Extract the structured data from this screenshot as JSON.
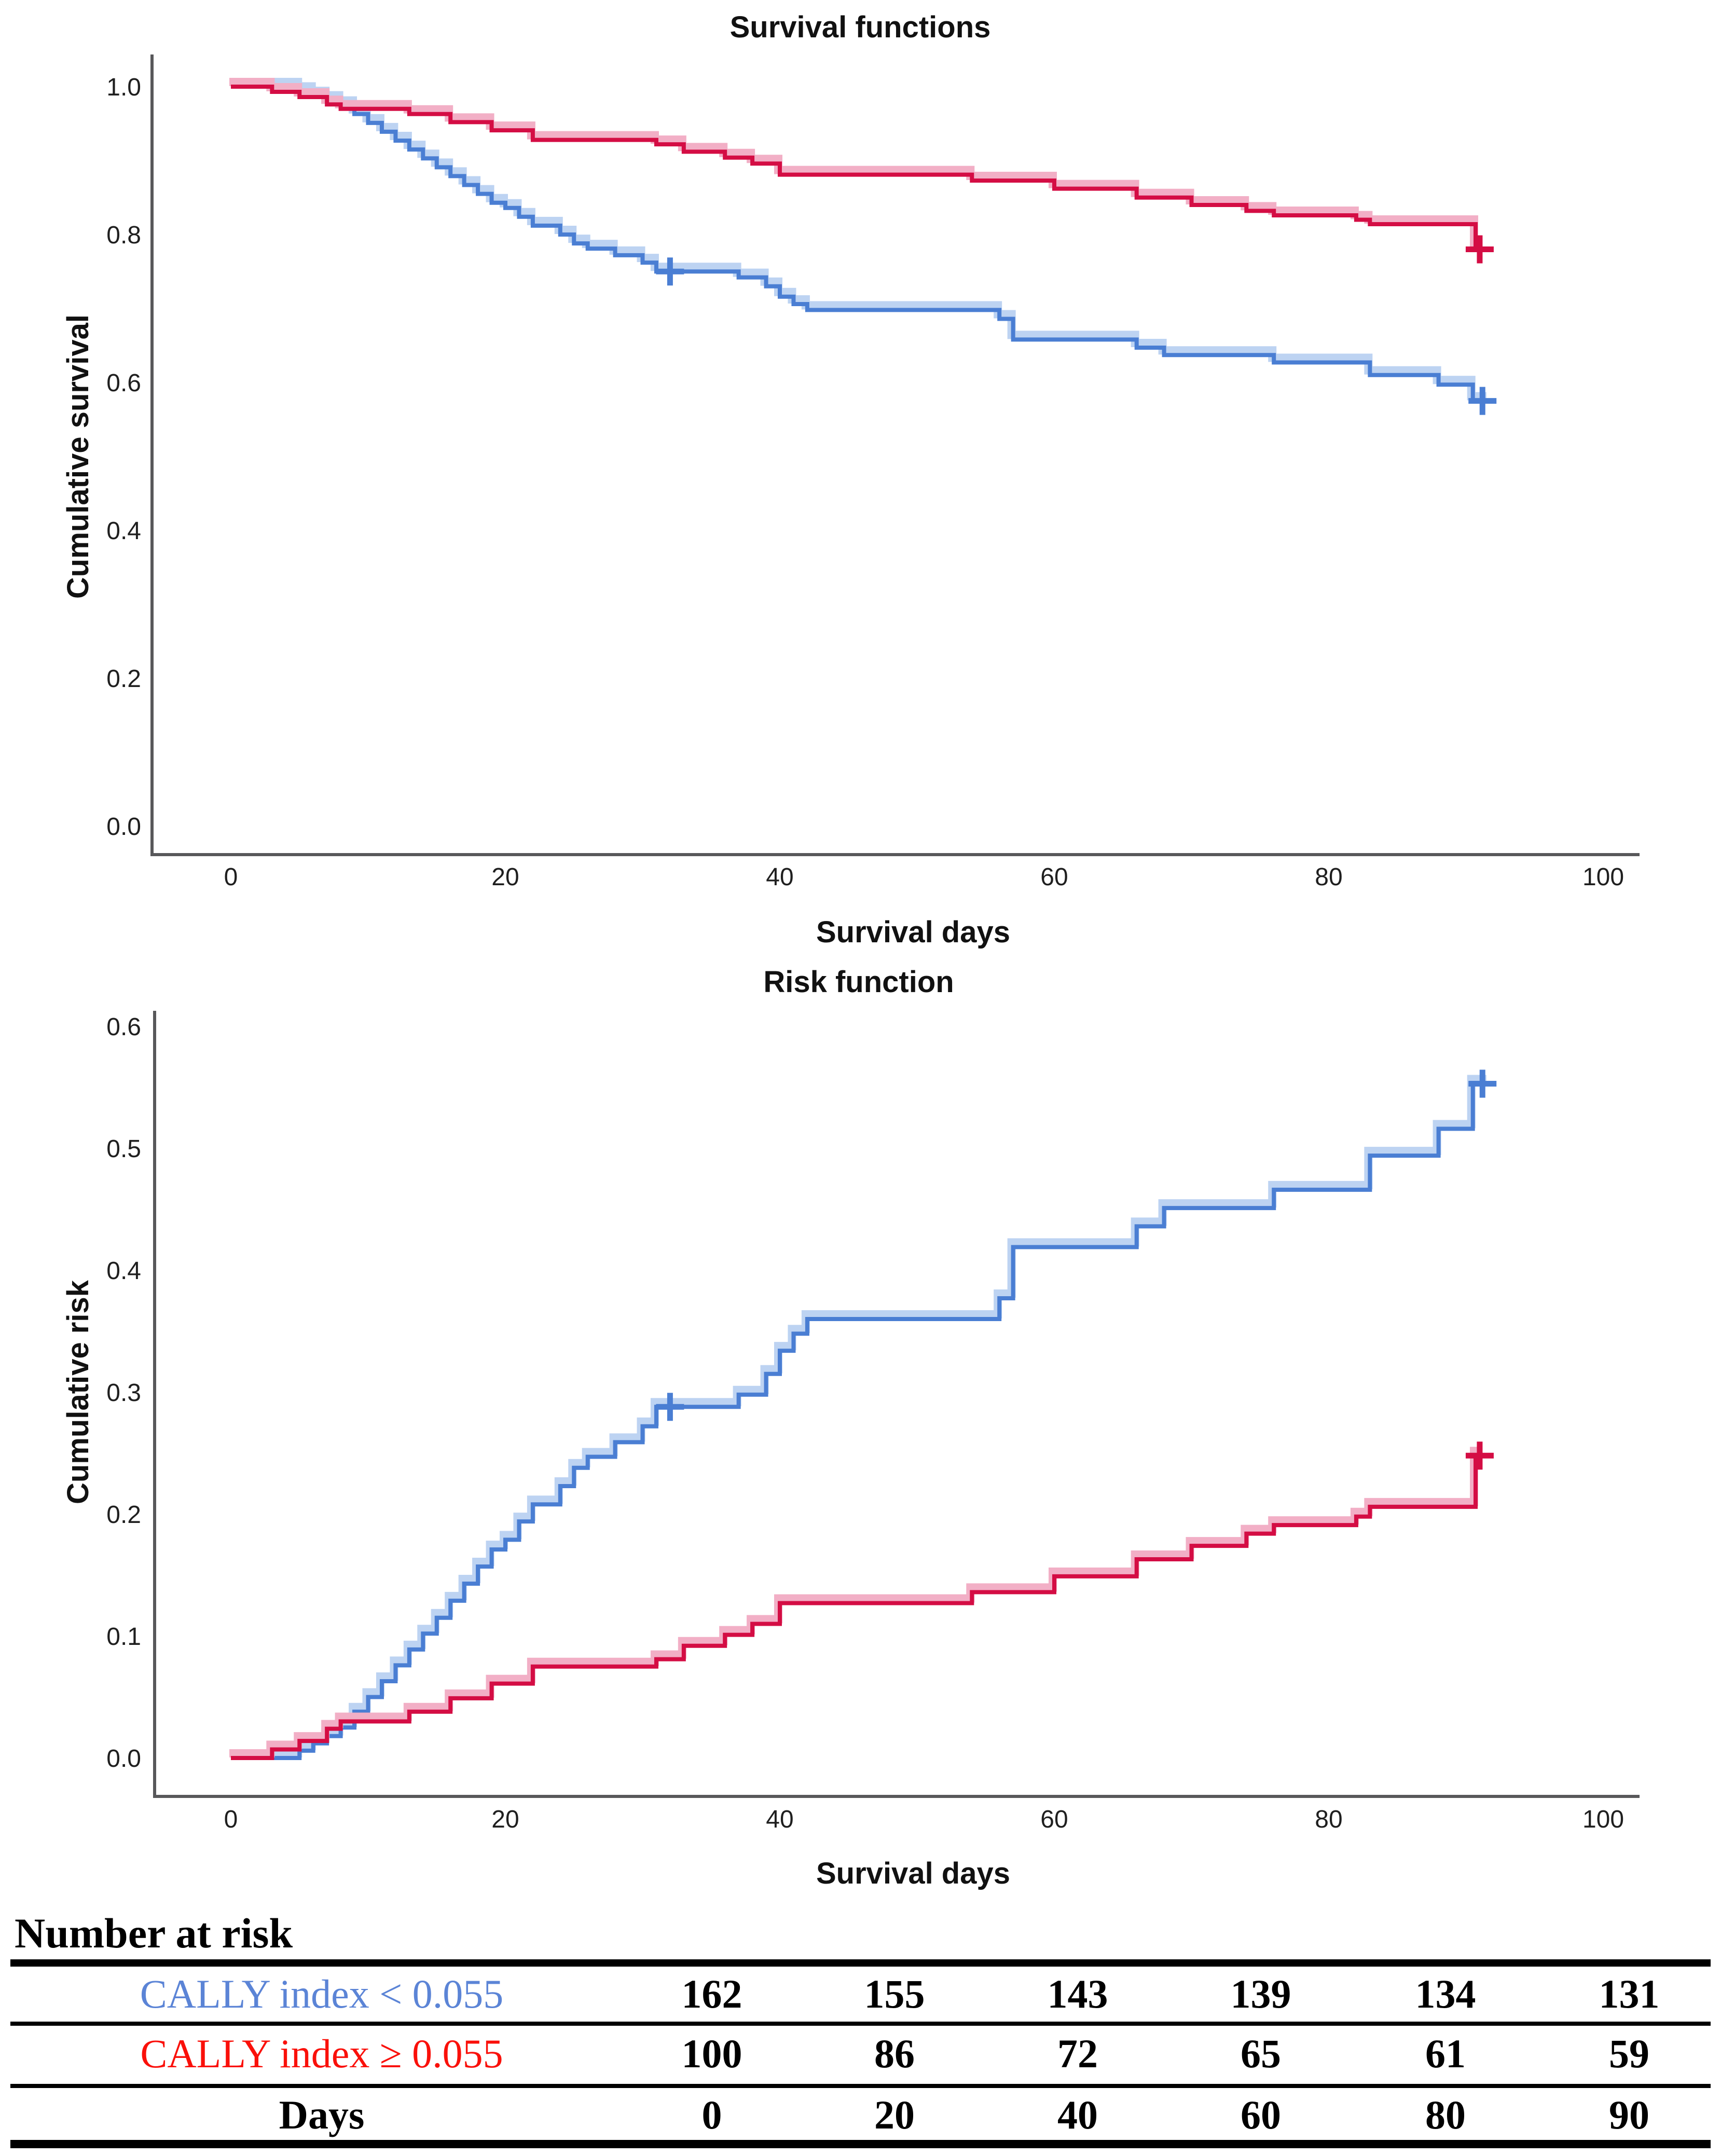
{
  "accent_colors": {
    "curve_blue": "#4a7ed3",
    "curve_blue_halo": "#bdd3f2",
    "curve_red": "#d40d44",
    "curve_red_halo": "#f2afc6",
    "table_label_blue": "#5b84d6",
    "table_label_red": "#fa100a",
    "axis_gray": "#58585a"
  },
  "chart_data": [
    {
      "type": "line",
      "step": true,
      "title": "Survival functions",
      "xlabel": "Survival days",
      "ylabel": "Cumulative survival",
      "xlim": [
        0,
        100
      ],
      "ylim": [
        0.0,
        1.0
      ],
      "x_ticks": [
        0,
        20,
        40,
        60,
        80,
        100
      ],
      "y_ticks": [
        "1.0",
        "0.8",
        "0.6",
        "0.4",
        "0.2",
        "0.0"
      ],
      "grid": false,
      "legend_position": "none",
      "series": [
        {
          "name": "CALLY index < 0.055",
          "color": "#4a7ed3",
          "halo": "#bdd3f2",
          "end_x": 91.6,
          "points": [
            [
              0,
              1.0
            ],
            [
              5,
              0.994
            ],
            [
              6,
              0.988
            ],
            [
              7,
              0.982
            ],
            [
              8,
              0.975
            ],
            [
              9,
              0.963
            ],
            [
              10,
              0.951
            ],
            [
              11,
              0.939
            ],
            [
              12,
              0.927
            ],
            [
              13,
              0.915
            ],
            [
              14,
              0.903
            ],
            [
              15,
              0.891
            ],
            [
              16,
              0.879
            ],
            [
              17,
              0.867
            ],
            [
              18,
              0.855
            ],
            [
              19,
              0.843
            ],
            [
              20,
              0.836
            ],
            [
              21,
              0.824
            ],
            [
              22,
              0.812
            ],
            [
              24,
              0.8
            ],
            [
              25,
              0.788
            ],
            [
              26,
              0.781
            ],
            [
              28,
              0.772
            ],
            [
              30,
              0.762
            ],
            [
              31,
              0.75
            ],
            [
              37,
              0.742
            ],
            [
              39,
              0.73
            ],
            [
              40,
              0.716
            ],
            [
              41,
              0.706
            ],
            [
              42,
              0.698
            ],
            [
              56,
              0.686
            ],
            [
              57,
              0.658
            ],
            [
              66,
              0.647
            ],
            [
              68,
              0.637
            ],
            [
              76,
              0.627
            ],
            [
              83,
              0.61
            ],
            [
              88,
              0.597
            ],
            [
              90.5,
              0.575
            ]
          ],
          "censored": [
            [
              32,
              0.75
            ],
            [
              91.2,
              0.575
            ]
          ]
        },
        {
          "name": "CALLY index ≥ 0.055",
          "color": "#d40d44",
          "halo": "#f2afc6",
          "end_x": 91.3,
          "points": [
            [
              0,
              1.0
            ],
            [
              3,
              0.993
            ],
            [
              5,
              0.986
            ],
            [
              7,
              0.976
            ],
            [
              8,
              0.97
            ],
            [
              13,
              0.963
            ],
            [
              16,
              0.952
            ],
            [
              19,
              0.941
            ],
            [
              22,
              0.928
            ],
            [
              31,
              0.922
            ],
            [
              33,
              0.912
            ],
            [
              36,
              0.904
            ],
            [
              38,
              0.896
            ],
            [
              40,
              0.881
            ],
            [
              54,
              0.873
            ],
            [
              60,
              0.862
            ],
            [
              66,
              0.85
            ],
            [
              70,
              0.84
            ],
            [
              74,
              0.832
            ],
            [
              76,
              0.826
            ],
            [
              82,
              0.82
            ],
            [
              83,
              0.814
            ],
            [
              90.7,
              0.78
            ]
          ],
          "censored": [
            [
              91,
              0.78
            ]
          ]
        }
      ]
    },
    {
      "type": "line",
      "step": true,
      "title": "Risk function",
      "xlabel": "Survival days",
      "ylabel": "Cumulative risk",
      "xlim": [
        0,
        100
      ],
      "ylim": [
        0.0,
        0.6
      ],
      "x_ticks": [
        0,
        20,
        40,
        60,
        80,
        100
      ],
      "y_ticks": [
        "0.6",
        "0.5",
        "0.4",
        "0.3",
        "0.2",
        "0.1",
        "0.0"
      ],
      "grid": false,
      "legend_position": "none",
      "series": [
        {
          "name": "CALLY index < 0.055",
          "color": "#4a7ed3",
          "halo": "#bdd3f2",
          "end_x": 91.6,
          "points": [
            [
              0,
              0.0
            ],
            [
              5,
              0.006
            ],
            [
              6,
              0.012
            ],
            [
              7,
              0.018
            ],
            [
              8,
              0.025
            ],
            [
              9,
              0.038
            ],
            [
              10,
              0.05
            ],
            [
              11,
              0.063
            ],
            [
              12,
              0.076
            ],
            [
              13,
              0.089
            ],
            [
              14,
              0.102
            ],
            [
              15,
              0.115
            ],
            [
              16,
              0.129
            ],
            [
              17,
              0.143
            ],
            [
              18,
              0.157
            ],
            [
              19,
              0.171
            ],
            [
              20,
              0.179
            ],
            [
              21,
              0.194
            ],
            [
              22,
              0.208
            ],
            [
              24,
              0.223
            ],
            [
              25,
              0.238
            ],
            [
              26,
              0.247
            ],
            [
              28,
              0.259
            ],
            [
              30,
              0.272
            ],
            [
              31,
              0.288
            ],
            [
              37,
              0.298
            ],
            [
              39,
              0.315
            ],
            [
              40,
              0.334
            ],
            [
              41,
              0.348
            ],
            [
              42,
              0.36
            ],
            [
              56,
              0.377
            ],
            [
              57,
              0.419
            ],
            [
              66,
              0.436
            ],
            [
              68,
              0.451
            ],
            [
              76,
              0.466
            ],
            [
              83,
              0.494
            ],
            [
              88,
              0.516
            ],
            [
              90.5,
              0.553
            ]
          ],
          "censored": [
            [
              32,
              0.288
            ],
            [
              91.2,
              0.553
            ]
          ]
        },
        {
          "name": "CALLY index ≥ 0.055",
          "color": "#d40d44",
          "halo": "#f2afc6",
          "end_x": 91.3,
          "points": [
            [
              0,
              0.0
            ],
            [
              3,
              0.007
            ],
            [
              5,
              0.014
            ],
            [
              7,
              0.024
            ],
            [
              8,
              0.03
            ],
            [
              13,
              0.038
            ],
            [
              16,
              0.049
            ],
            [
              19,
              0.061
            ],
            [
              22,
              0.075
            ],
            [
              31,
              0.081
            ],
            [
              33,
              0.092
            ],
            [
              36,
              0.101
            ],
            [
              38,
              0.11
            ],
            [
              40,
              0.127
            ],
            [
              54,
              0.136
            ],
            [
              60,
              0.149
            ],
            [
              66,
              0.163
            ],
            [
              70,
              0.174
            ],
            [
              74,
              0.184
            ],
            [
              76,
              0.191
            ],
            [
              82,
              0.198
            ],
            [
              83,
              0.206
            ],
            [
              90.7,
              0.248
            ]
          ],
          "censored": [
            [
              91,
              0.248
            ]
          ]
        }
      ]
    }
  ],
  "table": {
    "heading": "Number at risk",
    "rows": [
      {
        "label": "CALLY index < 0.055",
        "color": "#5b84d6",
        "values": [
          "162",
          "155",
          "143",
          "139",
          "134",
          "131"
        ]
      },
      {
        "label": "CALLY index ≥ 0.055",
        "color": "#fa100a",
        "values": [
          "100",
          "86",
          "72",
          "65",
          "61",
          "59"
        ]
      }
    ],
    "days_row": {
      "label": "Days",
      "values": [
        "0",
        "20",
        "40",
        "60",
        "80",
        "90"
      ]
    }
  }
}
